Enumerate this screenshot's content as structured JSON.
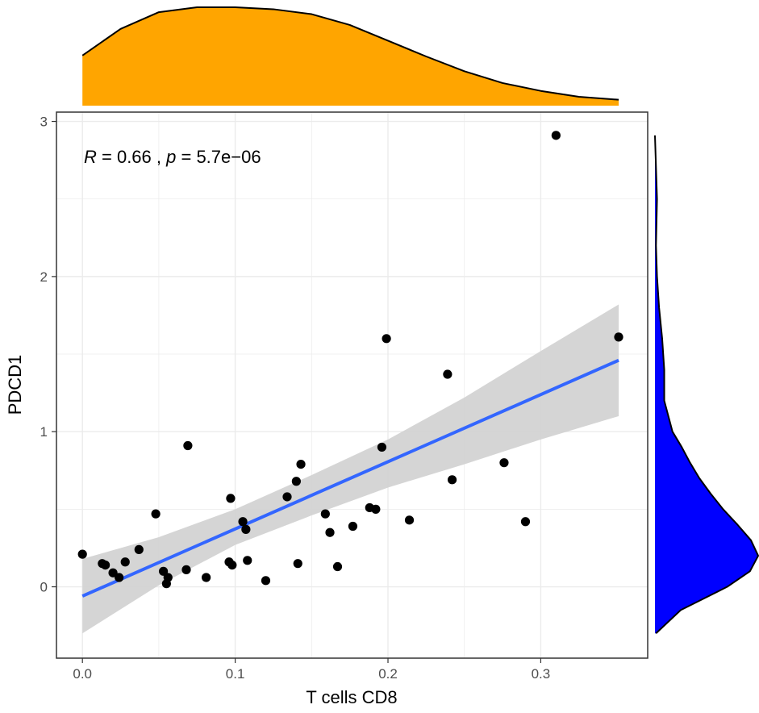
{
  "chart_data": {
    "type": "scatter",
    "xlabel": "T cells CD8",
    "ylabel": "PDCD1",
    "xlim": [
      -0.017,
      0.37
    ],
    "ylim": [
      -0.46,
      3.06
    ],
    "x_ticks": [
      0.0,
      0.1,
      0.2,
      0.3
    ],
    "x_tick_labels": [
      "0.0",
      "0.1",
      "0.2",
      "0.3"
    ],
    "y_ticks": [
      0,
      1,
      2,
      3
    ],
    "y_tick_labels": [
      "0",
      "1",
      "2",
      "3"
    ],
    "grid": true,
    "annotation": {
      "r_symbol": "R",
      "r_text": " = 0.66 , ",
      "p_symbol": "p",
      "p_text": " = 5.7e−06"
    },
    "points": [
      {
        "x": 0.0,
        "y": 0.21
      },
      {
        "x": 0.013,
        "y": 0.15
      },
      {
        "x": 0.015,
        "y": 0.14
      },
      {
        "x": 0.02,
        "y": 0.09
      },
      {
        "x": 0.024,
        "y": 0.06
      },
      {
        "x": 0.028,
        "y": 0.16
      },
      {
        "x": 0.037,
        "y": 0.24
      },
      {
        "x": 0.048,
        "y": 0.47
      },
      {
        "x": 0.053,
        "y": 0.1
      },
      {
        "x": 0.055,
        "y": 0.02
      },
      {
        "x": 0.056,
        "y": 0.06
      },
      {
        "x": 0.068,
        "y": 0.11
      },
      {
        "x": 0.069,
        "y": 0.91
      },
      {
        "x": 0.081,
        "y": 0.06
      },
      {
        "x": 0.096,
        "y": 0.16
      },
      {
        "x": 0.097,
        "y": 0.57
      },
      {
        "x": 0.098,
        "y": 0.14
      },
      {
        "x": 0.105,
        "y": 0.42
      },
      {
        "x": 0.107,
        "y": 0.37
      },
      {
        "x": 0.108,
        "y": 0.17
      },
      {
        "x": 0.12,
        "y": 0.04
      },
      {
        "x": 0.134,
        "y": 0.58
      },
      {
        "x": 0.14,
        "y": 0.68
      },
      {
        "x": 0.141,
        "y": 0.15
      },
      {
        "x": 0.143,
        "y": 0.79
      },
      {
        "x": 0.159,
        "y": 0.47
      },
      {
        "x": 0.162,
        "y": 0.35
      },
      {
        "x": 0.167,
        "y": 0.13
      },
      {
        "x": 0.177,
        "y": 0.39
      },
      {
        "x": 0.188,
        "y": 0.51
      },
      {
        "x": 0.192,
        "y": 0.5
      },
      {
        "x": 0.196,
        "y": 0.9
      },
      {
        "x": 0.199,
        "y": 1.6
      },
      {
        "x": 0.214,
        "y": 0.43
      },
      {
        "x": 0.239,
        "y": 1.37
      },
      {
        "x": 0.242,
        "y": 0.69
      },
      {
        "x": 0.276,
        "y": 0.8
      },
      {
        "x": 0.29,
        "y": 0.42
      },
      {
        "x": 0.31,
        "y": 2.91
      },
      {
        "x": 0.351,
        "y": 1.61
      }
    ],
    "fit_line": {
      "x": [
        0.0,
        0.351
      ],
      "y": [
        -0.06,
        1.46
      ]
    },
    "confidence_band": {
      "x": [
        0.0,
        0.05,
        0.1,
        0.15,
        0.2,
        0.25,
        0.3,
        0.351
      ],
      "lower": [
        -0.3,
        0.01,
        0.27,
        0.46,
        0.64,
        0.79,
        0.95,
        1.1
      ],
      "upper": [
        0.18,
        0.32,
        0.5,
        0.72,
        0.95,
        1.22,
        1.52,
        1.82
      ]
    },
    "marginal_x": {
      "fill": "#FFA500",
      "x": [
        0.0,
        0.025,
        0.05,
        0.075,
        0.1,
        0.125,
        0.15,
        0.175,
        0.2,
        0.225,
        0.25,
        0.275,
        0.3,
        0.325,
        0.351
      ],
      "density": [
        0.51,
        0.78,
        0.95,
        1.0,
        1.0,
        0.98,
        0.93,
        0.82,
        0.66,
        0.5,
        0.35,
        0.23,
        0.15,
        0.09,
        0.06
      ]
    },
    "marginal_y": {
      "fill": "#0000FF",
      "y": [
        -0.3,
        -0.15,
        0.0,
        0.1,
        0.2,
        0.3,
        0.4,
        0.5,
        0.6,
        0.7,
        0.8,
        0.9,
        1.0,
        1.2,
        1.4,
        1.6,
        1.8,
        2.0,
        2.2,
        2.5,
        2.91
      ],
      "density": [
        0.01,
        0.25,
        0.7,
        0.92,
        1.0,
        0.93,
        0.8,
        0.66,
        0.54,
        0.43,
        0.34,
        0.26,
        0.17,
        0.09,
        0.09,
        0.07,
        0.04,
        0.02,
        0.01,
        0.02,
        0.0
      ]
    },
    "colors": {
      "point": "#000000",
      "fit_line": "#3366FF",
      "band": "#D3D3D3",
      "grid": "#EBEBEB",
      "panel_border": "#333333"
    }
  }
}
